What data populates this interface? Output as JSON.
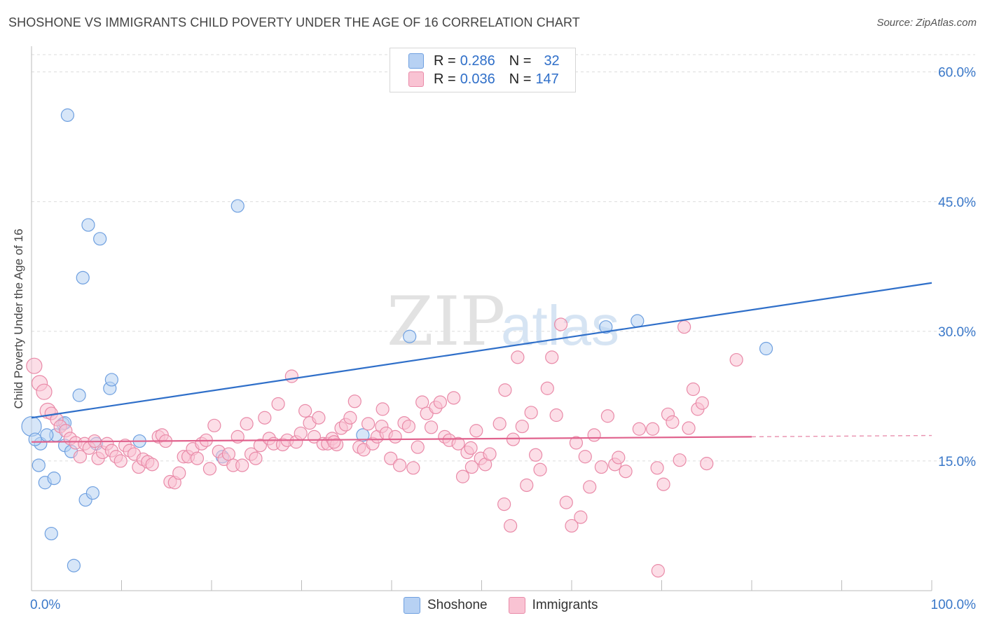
{
  "header": {
    "title": "SHOSHONE VS IMMIGRANTS CHILD POVERTY UNDER THE AGE OF 16 CORRELATION CHART",
    "source": "Source: ZipAtlas.com"
  },
  "watermark": {
    "zip": "ZIP",
    "atlas": "atlas"
  },
  "legend": {
    "rows": [
      {
        "r_key": "R =",
        "r_val": "0.286",
        "n_key": "N =",
        "n_val": "32",
        "color": "#b7d1f3",
        "border": "#6fa0e0"
      },
      {
        "r_key": "R =",
        "r_val": "0.036",
        "n_key": "N =",
        "n_val": "147",
        "color": "#f9c3d3",
        "border": "#e98aa8"
      }
    ]
  },
  "bottom_legend": [
    {
      "label": "Shoshone",
      "color": "#b7d1f3",
      "border": "#6fa0e0"
    },
    {
      "label": "Immigrants",
      "color": "#f9c3d3",
      "border": "#e98aa8"
    }
  ],
  "chart_data": {
    "type": "scatter",
    "title": "SHOSHONE VS IMMIGRANTS CHILD POVERTY UNDER THE AGE OF 16 CORRELATION CHART",
    "xlabel": "",
    "ylabel": "Child Poverty Under the Age of 16",
    "xlim": [
      0,
      100
    ],
    "ylim": [
      0,
      62
    ],
    "x_tick_labels": [
      "0.0%",
      "100.0%"
    ],
    "y_tick_labels": [
      "15.0%",
      "30.0%",
      "45.0%",
      "60.0%"
    ],
    "y_ticks": [
      15,
      30,
      45,
      60
    ],
    "grid": true,
    "legend_position": "top-center",
    "series": [
      {
        "name": "Shoshone",
        "color": "#6fa0e0",
        "fill": "#b7d1f3",
        "trend": {
          "x": [
            0,
            100
          ],
          "y": [
            20.0,
            35.6
          ],
          "color": "#2f6fc9"
        },
        "points": [
          [
            0.0,
            19.0
          ],
          [
            1.0,
            17.0
          ],
          [
            0.8,
            14.5
          ],
          [
            1.5,
            12.5
          ],
          [
            2.5,
            13.0
          ],
          [
            2.2,
            6.6
          ],
          [
            4.0,
            55.0
          ],
          [
            6.3,
            42.3
          ],
          [
            7.6,
            40.7
          ],
          [
            5.7,
            36.2
          ],
          [
            22.9,
            44.5
          ],
          [
            5.3,
            22.6
          ],
          [
            8.7,
            23.4
          ],
          [
            8.9,
            24.4
          ],
          [
            3.5,
            19.3
          ],
          [
            3.7,
            19.4
          ],
          [
            2.7,
            18.0
          ],
          [
            1.7,
            18.0
          ],
          [
            3.7,
            16.8
          ],
          [
            4.4,
            16.1
          ],
          [
            7.2,
            17.0
          ],
          [
            12.0,
            17.3
          ],
          [
            6.0,
            10.5
          ],
          [
            6.8,
            11.3
          ],
          [
            4.7,
            2.9
          ],
          [
            21.2,
            15.5
          ],
          [
            36.8,
            18.0
          ],
          [
            42.0,
            29.4
          ],
          [
            63.8,
            30.5
          ],
          [
            67.3,
            31.2
          ],
          [
            81.6,
            28.0
          ],
          [
            0.4,
            17.5
          ]
        ]
      },
      {
        "name": "Immigrants",
        "color": "#e98aa8",
        "fill": "#f9c3d3",
        "trend": {
          "x": [
            0,
            80
          ],
          "y": [
            17.2,
            17.8
          ],
          "color": "#e0628d",
          "dashed_extension_to": 100
        },
        "points": [
          [
            0.3,
            26.0
          ],
          [
            0.9,
            24.0
          ],
          [
            1.4,
            23.0
          ],
          [
            1.8,
            20.8
          ],
          [
            2.2,
            20.5
          ],
          [
            2.8,
            19.8
          ],
          [
            3.2,
            19.0
          ],
          [
            3.8,
            18.5
          ],
          [
            4.3,
            17.6
          ],
          [
            4.9,
            17.1
          ],
          [
            5.4,
            15.5
          ],
          [
            5.9,
            17.0
          ],
          [
            6.4,
            16.5
          ],
          [
            7.0,
            17.3
          ],
          [
            7.4,
            15.3
          ],
          [
            7.9,
            16.0
          ],
          [
            8.4,
            17.0
          ],
          [
            8.9,
            16.2
          ],
          [
            9.4,
            15.5
          ],
          [
            9.9,
            15.0
          ],
          [
            10.4,
            16.8
          ],
          [
            10.9,
            16.2
          ],
          [
            11.4,
            15.8
          ],
          [
            11.9,
            14.3
          ],
          [
            12.4,
            15.2
          ],
          [
            12.9,
            14.9
          ],
          [
            13.4,
            14.6
          ],
          [
            14.1,
            17.8
          ],
          [
            14.5,
            18.0
          ],
          [
            14.9,
            17.3
          ],
          [
            15.4,
            12.6
          ],
          [
            15.9,
            12.5
          ],
          [
            16.4,
            13.6
          ],
          [
            16.9,
            15.5
          ],
          [
            17.4,
            15.5
          ],
          [
            17.9,
            16.4
          ],
          [
            18.4,
            15.3
          ],
          [
            18.9,
            17.0
          ],
          [
            19.4,
            17.4
          ],
          [
            19.8,
            14.1
          ],
          [
            20.3,
            19.1
          ],
          [
            20.8,
            16.1
          ],
          [
            21.4,
            15.2
          ],
          [
            21.9,
            15.8
          ],
          [
            22.4,
            14.5
          ],
          [
            22.9,
            17.8
          ],
          [
            23.4,
            14.5
          ],
          [
            23.9,
            19.3
          ],
          [
            24.4,
            15.8
          ],
          [
            24.9,
            15.3
          ],
          [
            25.4,
            16.8
          ],
          [
            25.9,
            20.0
          ],
          [
            26.4,
            17.6
          ],
          [
            26.9,
            17.0
          ],
          [
            27.4,
            21.6
          ],
          [
            27.9,
            16.9
          ],
          [
            28.4,
            17.4
          ],
          [
            28.9,
            24.8
          ],
          [
            29.4,
            17.2
          ],
          [
            29.9,
            18.2
          ],
          [
            30.4,
            20.8
          ],
          [
            30.9,
            19.4
          ],
          [
            31.4,
            17.8
          ],
          [
            31.9,
            20.0
          ],
          [
            32.4,
            17.0
          ],
          [
            32.9,
            17.0
          ],
          [
            33.4,
            17.6
          ],
          [
            33.9,
            16.9
          ],
          [
            34.4,
            18.8
          ],
          [
            34.9,
            19.2
          ],
          [
            35.4,
            20.0
          ],
          [
            35.9,
            21.9
          ],
          [
            36.4,
            16.6
          ],
          [
            36.9,
            16.3
          ],
          [
            37.4,
            19.3
          ],
          [
            37.9,
            17.0
          ],
          [
            38.4,
            17.8
          ],
          [
            38.9,
            19.0
          ],
          [
            39.4,
            18.2
          ],
          [
            39.9,
            15.3
          ],
          [
            40.4,
            17.8
          ],
          [
            40.9,
            14.5
          ],
          [
            41.4,
            19.4
          ],
          [
            41.9,
            19.0
          ],
          [
            42.4,
            14.2
          ],
          [
            42.9,
            16.6
          ],
          [
            43.4,
            21.8
          ],
          [
            43.9,
            20.5
          ],
          [
            44.4,
            18.9
          ],
          [
            44.9,
            21.2
          ],
          [
            45.4,
            21.8
          ],
          [
            45.9,
            17.8
          ],
          [
            46.4,
            17.4
          ],
          [
            46.9,
            22.3
          ],
          [
            47.4,
            17.0
          ],
          [
            47.9,
            13.2
          ],
          [
            48.4,
            16.0
          ],
          [
            48.9,
            14.3
          ],
          [
            49.4,
            18.5
          ],
          [
            49.9,
            15.3
          ],
          [
            50.4,
            14.6
          ],
          [
            50.9,
            15.8
          ],
          [
            52.0,
            19.3
          ],
          [
            52.5,
            10.0
          ],
          [
            53.2,
            7.5
          ],
          [
            53.5,
            17.5
          ],
          [
            54.0,
            27.0
          ],
          [
            54.5,
            19.0
          ],
          [
            55.0,
            12.2
          ],
          [
            55.5,
            20.6
          ],
          [
            56.0,
            15.7
          ],
          [
            56.5,
            14.0
          ],
          [
            57.3,
            23.4
          ],
          [
            57.8,
            27.0
          ],
          [
            58.3,
            20.3
          ],
          [
            58.8,
            30.8
          ],
          [
            59.4,
            10.2
          ],
          [
            60.0,
            7.5
          ],
          [
            60.5,
            17.1
          ],
          [
            61.0,
            8.5
          ],
          [
            61.5,
            15.5
          ],
          [
            62.0,
            12.0
          ],
          [
            62.5,
            18.0
          ],
          [
            63.3,
            14.3
          ],
          [
            64.0,
            20.2
          ],
          [
            64.8,
            14.6
          ],
          [
            65.2,
            15.4
          ],
          [
            66.0,
            13.8
          ],
          [
            67.5,
            18.7
          ],
          [
            69.0,
            18.7
          ],
          [
            69.5,
            14.2
          ],
          [
            70.2,
            12.3
          ],
          [
            70.7,
            20.4
          ],
          [
            71.2,
            19.5
          ],
          [
            72.0,
            15.1
          ],
          [
            72.5,
            30.5
          ],
          [
            73.0,
            18.8
          ],
          [
            73.5,
            23.3
          ],
          [
            74.0,
            21.0
          ],
          [
            74.5,
            21.7
          ],
          [
            75.0,
            14.7
          ],
          [
            78.3,
            26.7
          ],
          [
            69.6,
            2.3
          ],
          [
            52.6,
            23.2
          ],
          [
            48.8,
            16.5
          ],
          [
            39.0,
            21.0
          ],
          [
            33.6,
            17.2
          ]
        ]
      }
    ]
  }
}
